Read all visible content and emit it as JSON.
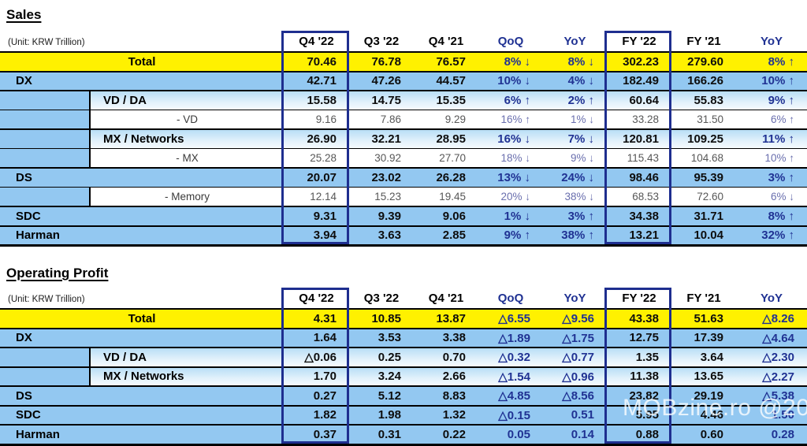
{
  "watermark": "MOBzine.ro @2023",
  "colors": {
    "highlight_yellow": "#FFF100",
    "band_blue": "#93C8F1",
    "sub_band_blue_top": "#B9DEF6",
    "sub_band_blue_bottom": "#F6FBFE",
    "navy_accent": "#1E2E8F",
    "navy_text": "#203293",
    "muted_value_gray": "#575757",
    "muted_pct_slate": "#6A6FAE",
    "grid_black": "#000000"
  },
  "tables": [
    {
      "title": "Sales",
      "unit": "(Unit: KRW Trillion)",
      "columns": [
        "Q4 '22",
        "Q3 '22",
        "Q4 '21",
        "QoQ",
        "YoY",
        "FY '22",
        "FY '21",
        "YoY"
      ],
      "rows": [
        {
          "label": "Total",
          "type": "total",
          "values": [
            "70.46",
            "76.78",
            "76.57",
            "8% ↓",
            "8% ↓",
            "302.23",
            "279.60",
            "8% ↑"
          ]
        },
        {
          "label": "DX",
          "type": "main",
          "values": [
            "42.71",
            "47.26",
            "44.57",
            "10% ↓",
            "4% ↓",
            "182.49",
            "166.26",
            "10% ↑"
          ]
        },
        {
          "label": "VD / DA",
          "type": "sub",
          "values": [
            "15.58",
            "14.75",
            "15.35",
            "6% ↑",
            "2% ↑",
            "60.64",
            "55.83",
            "9% ↑"
          ]
        },
        {
          "label": "- VD",
          "type": "subsub",
          "values": [
            "9.16",
            "7.86",
            "9.29",
            "16% ↑",
            "1% ↓",
            "33.28",
            "31.50",
            "6% ↑"
          ]
        },
        {
          "label": "MX / Networks",
          "type": "sub",
          "values": [
            "26.90",
            "32.21",
            "28.95",
            "16% ↓",
            "7% ↓",
            "120.81",
            "109.25",
            "11% ↑"
          ]
        },
        {
          "label": "- MX",
          "type": "subsub",
          "values": [
            "25.28",
            "30.92",
            "27.70",
            "18% ↓",
            "9% ↓",
            "115.43",
            "104.68",
            "10% ↑"
          ]
        },
        {
          "label": "DS",
          "type": "main",
          "values": [
            "20.07",
            "23.02",
            "26.28",
            "13% ↓",
            "24% ↓",
            "98.46",
            "95.39",
            "3% ↑"
          ]
        },
        {
          "label": "- Memory",
          "type": "subsub",
          "values": [
            "12.14",
            "15.23",
            "19.45",
            "20% ↓",
            "38% ↓",
            "68.53",
            "72.60",
            "6% ↓"
          ]
        },
        {
          "label": "SDC",
          "type": "main",
          "values": [
            "9.31",
            "9.39",
            "9.06",
            "1% ↓",
            "3% ↑",
            "34.38",
            "31.71",
            "8% ↑"
          ]
        },
        {
          "label": "Harman",
          "type": "main",
          "values": [
            "3.94",
            "3.63",
            "2.85",
            "9% ↑",
            "38% ↑",
            "13.21",
            "10.04",
            "32% ↑"
          ]
        }
      ]
    },
    {
      "title": "Operating Profit",
      "unit": "(Unit: KRW Trillion)",
      "columns": [
        "Q4 '22",
        "Q3 '22",
        "Q4 '21",
        "QoQ",
        "YoY",
        "FY '22",
        "FY '21",
        "YoY"
      ],
      "rows": [
        {
          "label": "Total",
          "type": "total",
          "values": [
            "4.31",
            "10.85",
            "13.87",
            "△6.55",
            "△9.56",
            "43.38",
            "51.63",
            "△8.26"
          ]
        },
        {
          "label": "DX",
          "type": "main",
          "values": [
            "1.64",
            "3.53",
            "3.38",
            "△1.89",
            "△1.75",
            "12.75",
            "17.39",
            "△4.64"
          ]
        },
        {
          "label": "VD / DA",
          "type": "sub",
          "values": [
            "△0.06",
            "0.25",
            "0.70",
            "△0.32",
            "△0.77",
            "1.35",
            "3.64",
            "△2.30"
          ]
        },
        {
          "label": "MX / Networks",
          "type": "sub",
          "values": [
            "1.70",
            "3.24",
            "2.66",
            "△1.54",
            "△0.96",
            "11.38",
            "13.65",
            "△2.27"
          ]
        },
        {
          "label": "DS",
          "type": "main",
          "values": [
            "0.27",
            "5.12",
            "8.83",
            "△4.85",
            "△8.56",
            "23.82",
            "29.19",
            "△5.38"
          ]
        },
        {
          "label": "SDC",
          "type": "main",
          "values": [
            "1.82",
            "1.98",
            "1.32",
            "△0.15",
            "0.51",
            "5.95",
            "4.46",
            "1.50"
          ]
        },
        {
          "label": "Harman",
          "type": "main",
          "values": [
            "0.37",
            "0.31",
            "0.22",
            "0.05",
            "0.14",
            "0.88",
            "0.60",
            "0.28"
          ]
        }
      ]
    }
  ]
}
